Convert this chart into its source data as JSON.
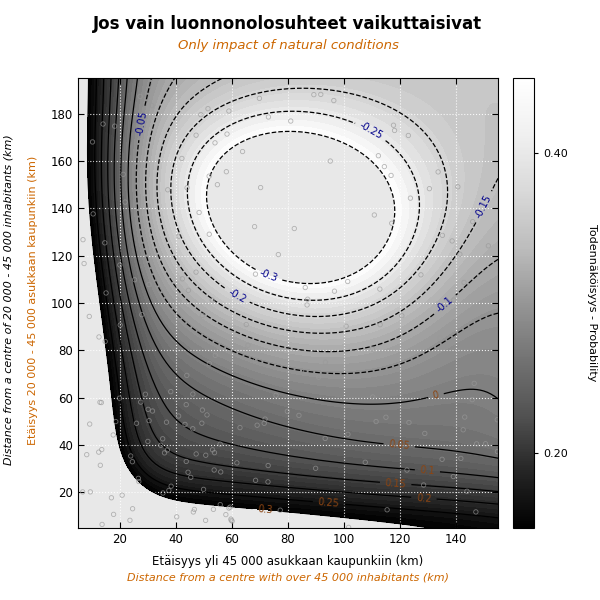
{
  "title": "Jos vain luonnonolosuhteet vaikuttaisivat",
  "subtitle": "Only impact of natural conditions",
  "xlabel_fi": "Etäisyys yli 45 000 asukkaan kaupunkiin (km)",
  "xlabel_en": "Distance from a centre with over 45 000 inhabitants (km)",
  "ylabel_fi": "Etäisyys 20 000 - 45 000 asukkaan kaupunkiin (km)",
  "ylabel_en": "Distance from a centre of 20 000 - 45 000 inhabitants (km)",
  "colorbar_label": "Todennäköisyys - Probability",
  "x_ticks": [
    20,
    40,
    60,
    80,
    100,
    120,
    140
  ],
  "y_ticks": [
    20,
    40,
    60,
    80,
    100,
    120,
    140,
    160,
    180
  ],
  "xlim": [
    5,
    155
  ],
  "ylim": [
    5,
    195
  ],
  "title_color": "#000000",
  "subtitle_color": "#CC6600",
  "xlabel_fi_color": "#000000",
  "xlabel_en_color": "#CC6600",
  "ylabel_fi_color": "#CC6600",
  "ylabel_en_color": "#000000",
  "contour_color": "#000000",
  "label_neg_color": "#00008B",
  "label_pos_color": "#8B4513",
  "scatter_facecolor": "none",
  "scatter_edgecolor": "#999999",
  "bg_white": "#FFFFFF",
  "bg_light": "#E8E8E8",
  "bg_medium": "#C8C8C8",
  "colorbar_low": 0.2,
  "colorbar_high": 0.4,
  "colorbar_vmin": 0.15,
  "colorbar_vmax": 0.45
}
